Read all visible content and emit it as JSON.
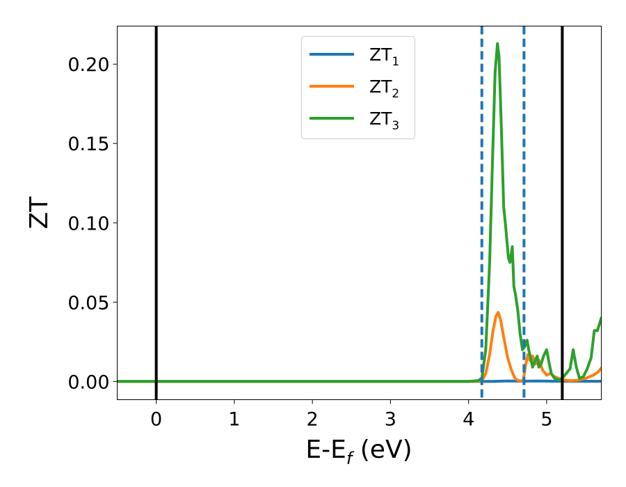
{
  "chart_data": {
    "type": "line",
    "xlabel": {
      "main": "E-E",
      "sub": "f",
      "suffix": " (eV)"
    },
    "ylabel": "ZT",
    "xlim": [
      -0.5,
      5.7
    ],
    "ylim": [
      -0.0115,
      0.224
    ],
    "xticks": [
      0,
      1,
      2,
      3,
      4,
      5
    ],
    "xtick_labels": [
      "0",
      "1",
      "2",
      "3",
      "4",
      "5"
    ],
    "yticks": [
      0.0,
      0.05,
      0.1,
      0.15,
      0.2
    ],
    "ytick_labels": [
      "0.00",
      "0.05",
      "0.10",
      "0.15",
      "0.20"
    ],
    "grid": false,
    "legend_position": "top-center",
    "vlines": [
      {
        "x": 0.0,
        "style": "solid",
        "color": "#000000"
      },
      {
        "x": 4.17,
        "style": "dashed",
        "color": "#1f77b4"
      },
      {
        "x": 4.71,
        "style": "dashed",
        "color": "#1f77b4"
      },
      {
        "x": 5.2,
        "style": "solid",
        "color": "#000000"
      }
    ],
    "series": [
      {
        "name": "ZT",
        "sub": "1",
        "color": "#1f77b4",
        "x": [
          -0.5,
          4.17,
          4.3,
          4.5,
          4.7,
          4.9,
          5.1,
          5.3,
          5.5,
          5.7
        ],
        "y": [
          0,
          0,
          0,
          0.0003,
          0.0002,
          0.0003,
          0.0001,
          0.0002,
          0.0001,
          0.0001
        ]
      },
      {
        "name": "ZT",
        "sub": "2",
        "color": "#ff7f0e",
        "x": [
          -0.5,
          4.1,
          4.17,
          4.22,
          4.27,
          4.31,
          4.35,
          4.38,
          4.41,
          4.45,
          4.5,
          4.55,
          4.6,
          4.65,
          4.7,
          4.73,
          4.76,
          4.79,
          4.82,
          4.86,
          4.9,
          4.95,
          5.0,
          5.05,
          5.1,
          5.2,
          5.3,
          5.4,
          5.5,
          5.6,
          5.66,
          5.7
        ],
        "y": [
          0,
          0,
          0.0005,
          0.005,
          0.017,
          0.031,
          0.041,
          0.0435,
          0.039,
          0.028,
          0.015,
          0.007,
          0.0015,
          0.0004,
          0.0005,
          0.01,
          0.017,
          0.013,
          0.016,
          0.011,
          0.0135,
          0.007,
          0.004,
          0.005,
          0.003,
          0.001,
          0.0005,
          0.0008,
          0.002,
          0.004,
          0.006,
          0.0085
        ]
      },
      {
        "name": "ZT",
        "sub": "3",
        "color": "#2ca02c",
        "x": [
          -0.5,
          4.0,
          4.12,
          4.17,
          4.22,
          4.27,
          4.31,
          4.34,
          4.37,
          4.39,
          4.42,
          4.45,
          4.48,
          4.51,
          4.53,
          4.56,
          4.58,
          4.6,
          4.63,
          4.66,
          4.69,
          4.72,
          4.75,
          4.77,
          4.8,
          4.82,
          4.85,
          4.88,
          4.9,
          4.93,
          4.96,
          5.0,
          5.03,
          5.06,
          5.1,
          5.15,
          5.2,
          5.25,
          5.3,
          5.34,
          5.38,
          5.42,
          5.47,
          5.52,
          5.57,
          5.61,
          5.65,
          5.7
        ],
        "y": [
          0,
          0,
          0.0005,
          0.002,
          0.02,
          0.075,
          0.145,
          0.195,
          0.213,
          0.205,
          0.16,
          0.11,
          0.095,
          0.078,
          0.075,
          0.085,
          0.06,
          0.055,
          0.045,
          0.03,
          0.02,
          0.022,
          0.026,
          0.02,
          0.014,
          0.009,
          0.013,
          0.016,
          0.009,
          0.011,
          0.016,
          0.02,
          0.012,
          0.005,
          0.002,
          0.001,
          0.002,
          0.005,
          0.008,
          0.02,
          0.009,
          0.002,
          0.003,
          0.008,
          0.015,
          0.032,
          0.032,
          0.04
        ]
      }
    ]
  }
}
